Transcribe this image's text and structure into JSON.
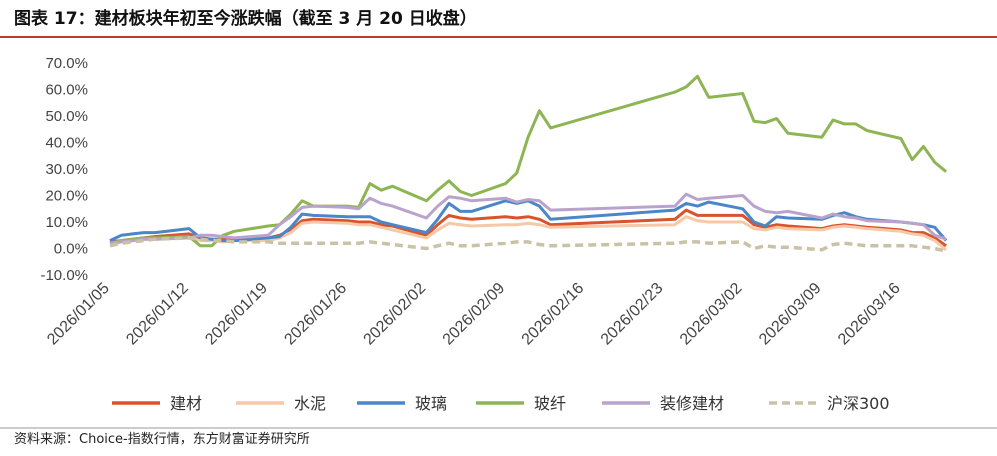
{
  "chart_data": {
    "type": "line",
    "title": "图表 17：建材板块年初至今涨跌幅（截至 3 月 20 日收盘）",
    "source": "资料来源：Choice-指数行情，东方财富证券研究所",
    "x": [
      "2026/01/05",
      "2026/01/06",
      "2026/01/07",
      "2026/01/08",
      "2026/01/09",
      "2026/01/12",
      "2026/01/13",
      "2026/01/14",
      "2026/01/15",
      "2026/01/16",
      "2026/01/19",
      "2026/01/20",
      "2026/01/21",
      "2026/01/22",
      "2026/01/23",
      "2026/01/26",
      "2026/01/27",
      "2026/01/28",
      "2026/01/29",
      "2026/01/30",
      "2026/02/02",
      "2026/02/03",
      "2026/02/04",
      "2026/02/05",
      "2026/02/06",
      "2026/02/09",
      "2026/02/10",
      "2026/02/11",
      "2026/02/12",
      "2026/02/13",
      "2026/02/24",
      "2026/02/25",
      "2026/02/26",
      "2026/02/27",
      "2026/03/02",
      "2026/03/03",
      "2026/03/04",
      "2026/03/05",
      "2026/03/06",
      "2026/03/09",
      "2026/03/10",
      "2026/03/11",
      "2026/03/12",
      "2026/03/13",
      "2026/03/16",
      "2026/03/17",
      "2026/03/18",
      "2026/03/19",
      "2026/03/20"
    ],
    "xlim": [
      "2026/01/05",
      "2026/03/23"
    ],
    "xticks": [
      "2026/01/05",
      "2026/01/12",
      "2026/01/19",
      "2026/01/26",
      "2026/02/02",
      "2026/02/09",
      "2026/02/16",
      "2026/02/23",
      "2026/03/02",
      "2026/03/09",
      "2026/03/16"
    ],
    "ylim": [
      -10,
      70
    ],
    "yticks": [
      {
        "value": -10,
        "label": "-10.0%"
      },
      {
        "value": 0,
        "label": "0.0%"
      },
      {
        "value": 10,
        "label": "10.0%"
      },
      {
        "value": 20,
        "label": "20.0%"
      },
      {
        "value": 30,
        "label": "30.0%"
      },
      {
        "value": 40,
        "label": "40.0%"
      },
      {
        "value": 50,
        "label": "50.0%"
      },
      {
        "value": 60,
        "label": "60.0%"
      },
      {
        "value": 70,
        "label": "70.0%"
      }
    ],
    "series": [
      {
        "name": "建材",
        "color": "#d9532b",
        "dashed": false,
        "values": [
          2.5,
          3,
          3.5,
          4,
          4.5,
          5.5,
          4,
          3.5,
          3.5,
          3.5,
          4,
          5,
          7,
          10.5,
          11,
          10.5,
          10,
          10,
          9,
          8.5,
          5,
          9,
          12.5,
          11.5,
          11,
          12,
          11.5,
          12,
          11,
          9,
          11,
          14.5,
          12.5,
          12.5,
          12.5,
          9,
          8,
          9,
          8.5,
          7.5,
          8.5,
          9,
          8.5,
          8,
          7,
          6,
          6,
          4,
          1
        ]
      },
      {
        "name": "水泥",
        "color": "#f6c8a6",
        "dashed": false,
        "values": [
          1.5,
          2.5,
          3,
          3.5,
          3.5,
          4,
          3,
          3,
          2.5,
          3,
          3,
          4,
          6,
          9.5,
          10,
          9.5,
          9,
          9,
          8,
          7,
          4,
          7,
          9.5,
          9,
          8.5,
          9,
          9,
          9.5,
          9,
          8,
          9,
          12,
          10.5,
          10,
          10,
          7.5,
          7,
          8,
          7.5,
          7,
          8,
          8.5,
          8,
          7.5,
          6.5,
          5.5,
          5,
          3,
          -0.5
        ]
      },
      {
        "name": "玻璃",
        "color": "#4a86c8",
        "dashed": false,
        "values": [
          3,
          5,
          5.5,
          6,
          6,
          7.5,
          4,
          3.5,
          3,
          3,
          4,
          4.5,
          8,
          13,
          12.5,
          12,
          12,
          12,
          10,
          9,
          6,
          11,
          17,
          14,
          14,
          18,
          17,
          18,
          16,
          11,
          14.5,
          17,
          16,
          17.5,
          15,
          10,
          8.5,
          12,
          11.5,
          11,
          12.5,
          13.5,
          12,
          11,
          10,
          9.5,
          9,
          8,
          3
        ]
      },
      {
        "name": "玻纤",
        "color": "#8db553",
        "dashed": false,
        "values": [
          2,
          3,
          3.5,
          4,
          4,
          4.5,
          1,
          1,
          5,
          6.5,
          8.5,
          9,
          13,
          18,
          16,
          16,
          15.5,
          24.5,
          22,
          23.5,
          18,
          22,
          25.5,
          21.5,
          20,
          24.5,
          28.5,
          42,
          52,
          45.5,
          59,
          61,
          65,
          57,
          58.5,
          48,
          47.5,
          49,
          43.5,
          42,
          48.5,
          47,
          47,
          44.5,
          41.5,
          33.5,
          38.5,
          32.5,
          29
        ]
      },
      {
        "name": "装修建材",
        "color": "#b9a3cd",
        "dashed": false,
        "values": [
          2,
          2.5,
          3,
          3.5,
          3.5,
          4,
          5,
          5,
          4.5,
          4,
          5,
          9,
          12,
          15.5,
          16,
          15.5,
          15,
          19,
          17,
          16,
          11.5,
          16,
          19.5,
          19,
          18,
          19,
          17.5,
          18.5,
          18,
          14.5,
          16,
          20.5,
          18.5,
          19,
          20,
          16,
          14,
          13.5,
          14,
          11.5,
          13,
          12,
          11.5,
          10.5,
          10,
          9.5,
          9,
          5,
          3.5
        ]
      },
      {
        "name": "沪深300",
        "color": "#c9c2a6",
        "dashed": true,
        "values": [
          1,
          2,
          2.5,
          3,
          3.5,
          4,
          3.5,
          3,
          3,
          2.5,
          2.5,
          2,
          2,
          2,
          2,
          2,
          2,
          2.5,
          2,
          1.5,
          0,
          1,
          2,
          1,
          1,
          2,
          2.5,
          2.5,
          1.5,
          1,
          2,
          2.5,
          2.5,
          2,
          2.5,
          0,
          1,
          0.5,
          0.5,
          -0.5,
          1.5,
          2,
          1.5,
          1,
          1,
          1,
          0.5,
          0,
          -1
        ]
      }
    ]
  }
}
